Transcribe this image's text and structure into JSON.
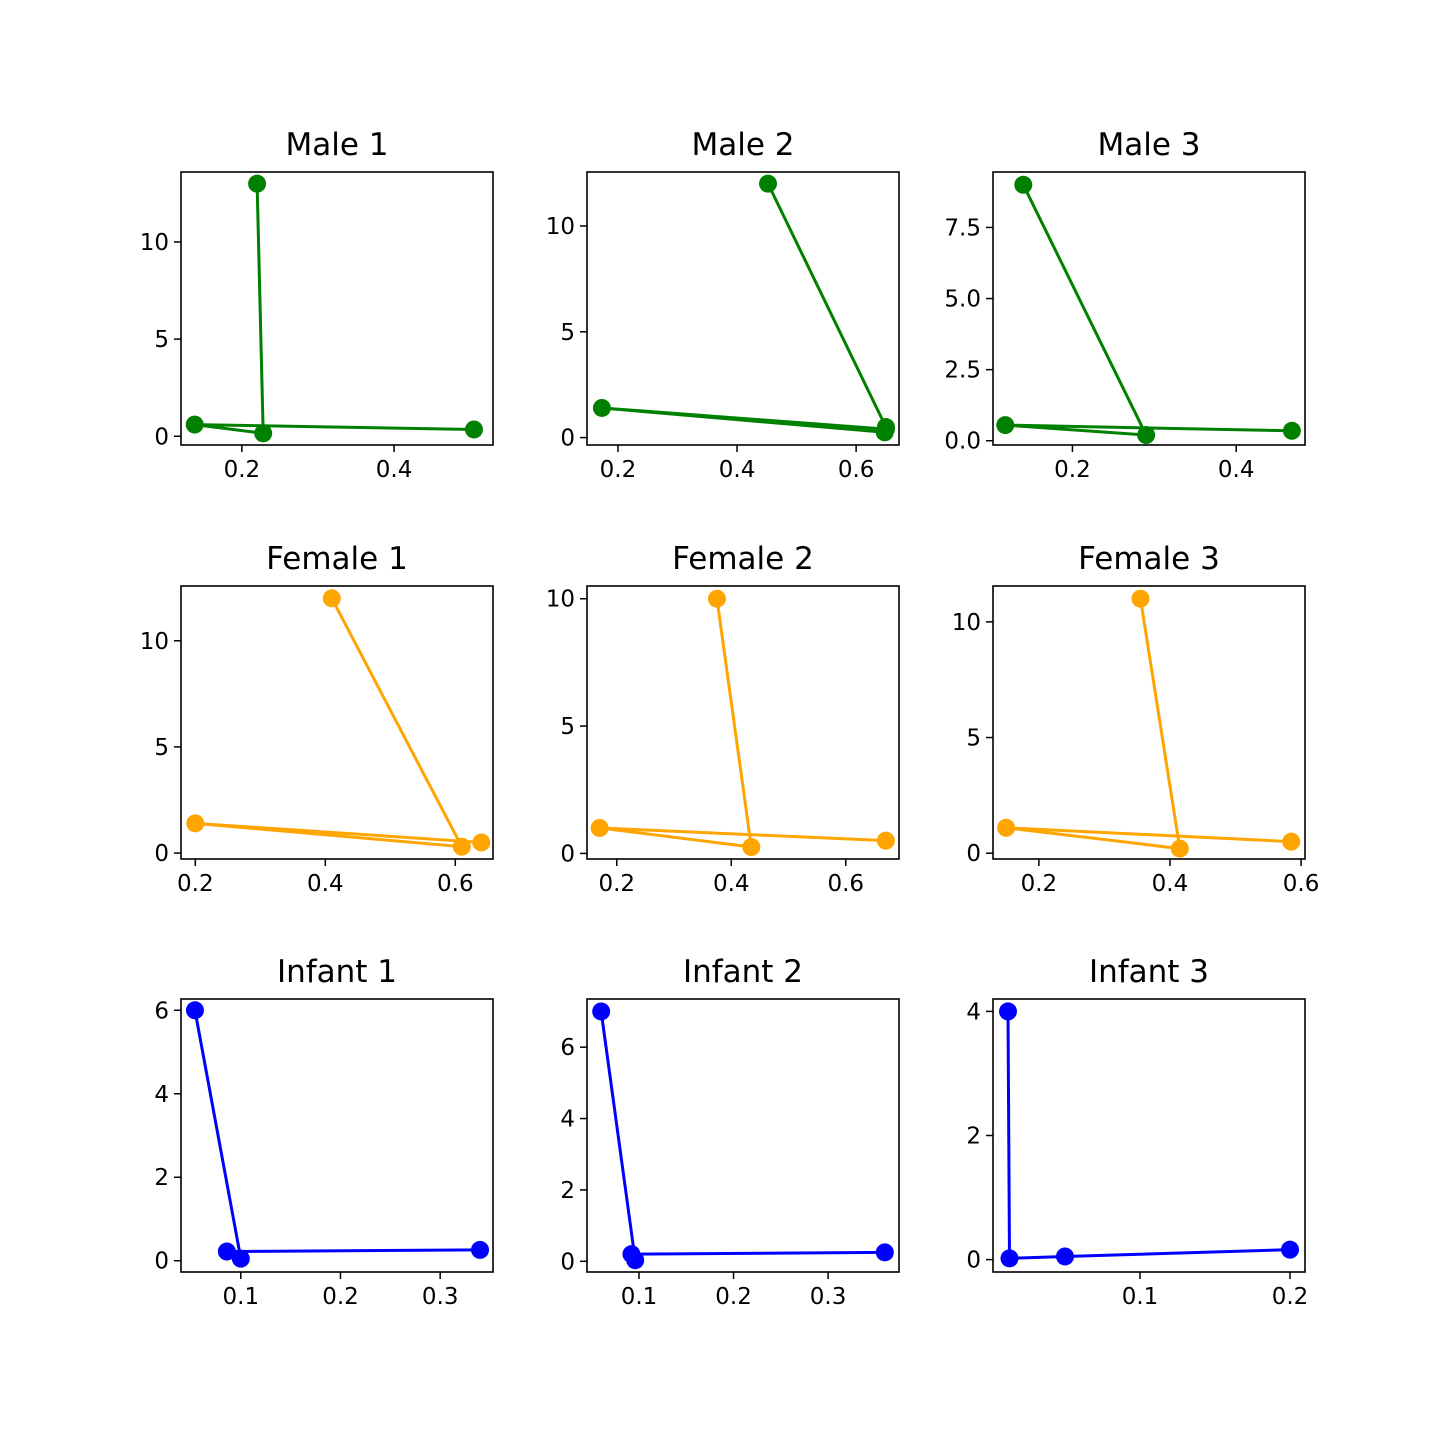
{
  "chart_data": [
    {
      "type": "line",
      "title": "Male 1",
      "color": "#008000",
      "xlim": [
        0.12,
        0.53
      ],
      "ylim": [
        -0.45,
        13.6
      ],
      "xticks": [
        {
          "value": 0.2,
          "label": "0.2"
        },
        {
          "value": 0.4,
          "label": "0.4"
        }
      ],
      "yticks": [
        {
          "value": 0,
          "label": "0"
        },
        {
          "value": 5,
          "label": "5"
        },
        {
          "value": 10,
          "label": "10"
        }
      ],
      "series": [
        {
          "x": [
            0.22,
            0.228,
            0.138,
            0.505
          ],
          "y": [
            13.0,
            0.15,
            0.6,
            0.35
          ]
        }
      ]
    },
    {
      "type": "line",
      "title": "Male 2",
      "color": "#008000",
      "xlim": [
        0.148,
        0.672
      ],
      "ylim": [
        -0.35,
        12.55
      ],
      "xticks": [
        {
          "value": 0.2,
          "label": "0.2"
        },
        {
          "value": 0.4,
          "label": "0.4"
        },
        {
          "value": 0.6,
          "label": "0.6"
        }
      ],
      "yticks": [
        {
          "value": 0,
          "label": "0"
        },
        {
          "value": 5,
          "label": "5"
        },
        {
          "value": 10,
          "label": "10"
        }
      ],
      "series": [
        {
          "x": [
            0.452,
            0.65,
            0.648,
            0.173,
            0.65
          ],
          "y": [
            12.0,
            0.5,
            0.25,
            1.4,
            0.4
          ]
        }
      ]
    },
    {
      "type": "line",
      "title": "Male 3",
      "color": "#008000",
      "xlim": [
        0.103,
        0.484
      ],
      "ylim": [
        -0.15,
        9.45
      ],
      "xticks": [
        {
          "value": 0.2,
          "label": "0.2"
        },
        {
          "value": 0.4,
          "label": "0.4"
        }
      ],
      "yticks": [
        {
          "value": 0,
          "label": "0.0"
        },
        {
          "value": 2.5,
          "label": "2.5"
        },
        {
          "value": 5,
          "label": "5.0"
        },
        {
          "value": 7.5,
          "label": "7.5"
        }
      ],
      "series": [
        {
          "x": [
            0.14,
            0.29,
            0.118,
            0.468
          ],
          "y": [
            9.0,
            0.2,
            0.55,
            0.35
          ]
        }
      ]
    },
    {
      "type": "line",
      "title": "Female 1",
      "color": "#ffa500",
      "xlim": [
        0.178,
        0.658
      ],
      "ylim": [
        -0.28,
        12.58
      ],
      "xticks": [
        {
          "value": 0.2,
          "label": "0.2"
        },
        {
          "value": 0.4,
          "label": "0.4"
        },
        {
          "value": 0.6,
          "label": "0.6"
        }
      ],
      "yticks": [
        {
          "value": 0,
          "label": "0"
        },
        {
          "value": 5,
          "label": "5"
        },
        {
          "value": 10,
          "label": "10"
        }
      ],
      "series": [
        {
          "x": [
            0.41,
            0.61,
            0.2,
            0.64
          ],
          "y": [
            12.0,
            0.3,
            1.4,
            0.5
          ]
        }
      ]
    },
    {
      "type": "line",
      "title": "Female 2",
      "color": "#ffa500",
      "xlim": [
        0.148,
        0.693
      ],
      "ylim": [
        -0.22,
        10.5
      ],
      "xticks": [
        {
          "value": 0.2,
          "label": "0.2"
        },
        {
          "value": 0.4,
          "label": "0.4"
        },
        {
          "value": 0.6,
          "label": "0.6"
        }
      ],
      "yticks": [
        {
          "value": 0,
          "label": "0"
        },
        {
          "value": 5,
          "label": "5"
        },
        {
          "value": 10,
          "label": "10"
        }
      ],
      "series": [
        {
          "x": [
            0.375,
            0.435,
            0.17,
            0.67
          ],
          "y": [
            10.0,
            0.25,
            1.0,
            0.5
          ]
        }
      ]
    },
    {
      "type": "line",
      "title": "Female 3",
      "color": "#ffa500",
      "xlim": [
        0.13,
        0.606
      ],
      "ylim": [
        -0.25,
        11.55
      ],
      "xticks": [
        {
          "value": 0.2,
          "label": "0.2"
        },
        {
          "value": 0.4,
          "label": "0.4"
        },
        {
          "value": 0.6,
          "label": "0.6"
        }
      ],
      "yticks": [
        {
          "value": 0,
          "label": "0"
        },
        {
          "value": 5,
          "label": "5"
        },
        {
          "value": 10,
          "label": "10"
        }
      ],
      "series": [
        {
          "x": [
            0.355,
            0.415,
            0.15,
            0.585
          ],
          "y": [
            11.0,
            0.2,
            1.1,
            0.5
          ]
        }
      ]
    },
    {
      "type": "line",
      "title": "Infant 1",
      "color": "#0000ff",
      "xlim": [
        0.04,
        0.353
      ],
      "ylim": [
        -0.27,
        6.27
      ],
      "xticks": [
        {
          "value": 0.1,
          "label": "0.1"
        },
        {
          "value": 0.2,
          "label": "0.2"
        },
        {
          "value": 0.3,
          "label": "0.3"
        }
      ],
      "yticks": [
        {
          "value": 0,
          "label": "0"
        },
        {
          "value": 2,
          "label": "2"
        },
        {
          "value": 4,
          "label": "4"
        },
        {
          "value": 6,
          "label": "6"
        }
      ],
      "series": [
        {
          "x": [
            0.054,
            0.1,
            0.086,
            0.34
          ],
          "y": [
            6.0,
            0.05,
            0.22,
            0.26
          ]
        }
      ]
    },
    {
      "type": "line",
      "title": "Infant 2",
      "color": "#0000ff",
      "xlim": [
        0.045,
        0.375
      ],
      "ylim": [
        -0.3,
        7.35
      ],
      "xticks": [
        {
          "value": 0.1,
          "label": "0.1"
        },
        {
          "value": 0.2,
          "label": "0.2"
        },
        {
          "value": 0.3,
          "label": "0.3"
        }
      ],
      "yticks": [
        {
          "value": 0,
          "label": "0"
        },
        {
          "value": 2,
          "label": "2"
        },
        {
          "value": 4,
          "label": "4"
        },
        {
          "value": 6,
          "label": "6"
        }
      ],
      "series": [
        {
          "x": [
            0.06,
            0.096,
            0.092,
            0.36
          ],
          "y": [
            7.0,
            0.03,
            0.2,
            0.25
          ]
        }
      ]
    },
    {
      "type": "line",
      "title": "Infant 3",
      "color": "#0000ff",
      "xlim": [
        0.002,
        0.21
      ],
      "ylim": [
        -0.2,
        4.2
      ],
      "xticks": [
        {
          "value": 0.1,
          "label": "0.1"
        },
        {
          "value": 0.2,
          "label": "0.2"
        }
      ],
      "yticks": [
        {
          "value": 0,
          "label": "0"
        },
        {
          "value": 2,
          "label": "2"
        },
        {
          "value": 4,
          "label": "4"
        }
      ],
      "series": [
        {
          "x": [
            0.012,
            0.013,
            0.05,
            0.2
          ],
          "y": [
            4.0,
            0.02,
            0.05,
            0.16
          ]
        }
      ]
    }
  ]
}
